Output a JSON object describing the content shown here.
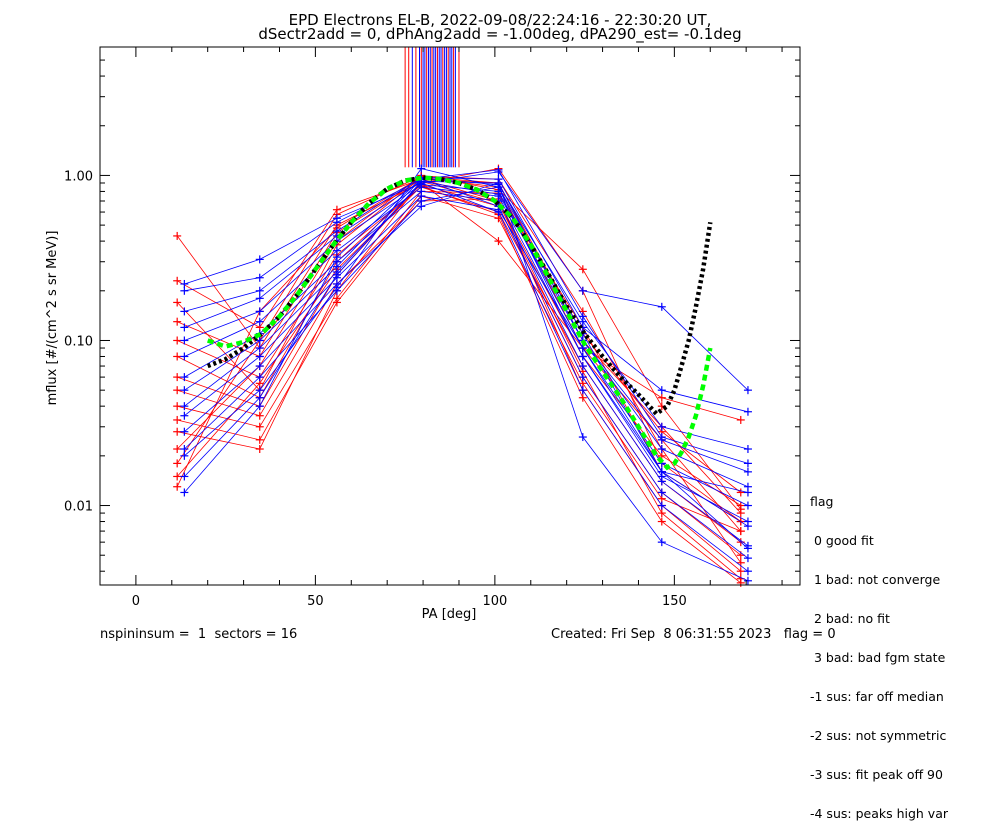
{
  "header": {
    "line1": "EPD Electrons EL-B, 2022-09-08/22:24:16 - 22:30:20 UT,",
    "line2": "dSectr2add = 0, dPhAng2add = -1.00deg, dPA290_est=  -0.1deg"
  },
  "footer": {
    "left": "nspininsum =  1  sectors = 16",
    "right": "Created: Fri Sep  8 06:31:55 2023   flag = 0"
  },
  "legend": {
    "title": "flag",
    "items": [
      " 0 good fit",
      " 1 bad: not converge",
      " 2 bad: no fit",
      " 3 bad: bad fgm state",
      "-1 sus: far off median",
      "-2 sus: not symmetric",
      "-3 sus: fit peak off 90",
      "-4 sus: peaks high var"
    ]
  },
  "chart_data": {
    "type": "line",
    "title": "EPD Electrons EL-B, 2022-09-08/22:24:16 - 22:30:20 UT,",
    "xlabel": "PA [deg]",
    "ylabel": "mflux [#/(cm^2 s sr MeV)]",
    "xlim": [
      -10,
      185
    ],
    "ylim": [
      0.0033,
      6.0
    ],
    "yscale": "log",
    "xticks": [
      0,
      50,
      100,
      150
    ],
    "yticks": [
      0.01,
      0.1,
      1.0
    ],
    "ytick_labels": [
      "0.01",
      "0.10",
      "1.00"
    ],
    "colors": {
      "red": "#ff0000",
      "blue": "#0000ff",
      "black": "#000000",
      "green": "#00ff00"
    },
    "pa_bins": [
      11.5,
      13.5,
      34.5,
      56,
      79.5,
      101,
      124.5,
      146.5,
      168.5,
      170.5
    ],
    "sector_lines_x": [
      75,
      76,
      77,
      78,
      79,
      79.5,
      80,
      80.5,
      81,
      81.5,
      82,
      82.5,
      83,
      83.5,
      84,
      84.5,
      85,
      85.5,
      86,
      86.5,
      87,
      87.5,
      88,
      88.5,
      89,
      90
    ],
    "sector_lines_color": [
      "red",
      "red",
      "blue",
      "red",
      "blue",
      "red",
      "blue",
      "blue",
      "red",
      "blue",
      "blue",
      "red",
      "blue",
      "blue",
      "red",
      "blue",
      "blue",
      "red",
      "blue",
      "blue",
      "red",
      "blue",
      "blue",
      "red",
      "blue",
      "red"
    ],
    "sector_lines_range": [
      1.12,
      6.0
    ],
    "series": [
      {
        "color": "red",
        "x": [
          11.5,
          34.5,
          56,
          79.5,
          101,
          124.5,
          146.5,
          168.5
        ],
        "values": [
          0.43,
          0.09,
          0.5,
          0.9,
          1.1,
          0.2,
          0.018,
          0.008
        ]
      },
      {
        "color": "red",
        "x": [
          11.5,
          34.5,
          56,
          79.5,
          101,
          124.5,
          146.5,
          168.5
        ],
        "values": [
          0.23,
          0.12,
          0.62,
          0.95,
          0.9,
          0.1,
          0.03,
          0.009
        ]
      },
      {
        "color": "red",
        "x": [
          11.5,
          34.5,
          56,
          79.5,
          101,
          124.5,
          146.5,
          168.5
        ],
        "values": [
          0.17,
          0.05,
          0.38,
          0.97,
          0.85,
          0.09,
          0.025,
          0.007
        ]
      },
      {
        "color": "red",
        "x": [
          11.5,
          34.5,
          56,
          79.5,
          101,
          124.5,
          146.5,
          168.5
        ],
        "values": [
          0.13,
          0.08,
          0.45,
          0.95,
          0.7,
          0.08,
          0.02,
          0.01
        ]
      },
      {
        "color": "red",
        "x": [
          11.5,
          34.5,
          56,
          79.5,
          101,
          124.5,
          146.5,
          168.5
        ],
        "values": [
          0.1,
          0.06,
          0.33,
          0.85,
          0.6,
          0.07,
          0.014,
          0.006
        ]
      },
      {
        "color": "red",
        "x": [
          11.5,
          34.5,
          56,
          79.5,
          101,
          124.5,
          146.5,
          168.5
        ],
        "values": [
          0.08,
          0.045,
          0.3,
          0.88,
          0.65,
          0.06,
          0.012,
          0.005
        ]
      },
      {
        "color": "red",
        "x": [
          11.5,
          34.5,
          56,
          79.5,
          101,
          124.5,
          146.5,
          168.5
        ],
        "values": [
          0.06,
          0.04,
          0.25,
          0.9,
          0.4,
          0.09,
          0.045,
          0.033
        ]
      },
      {
        "color": "red",
        "x": [
          11.5,
          34.5,
          56,
          79.5,
          101,
          124.5,
          146.5,
          168.5
        ],
        "values": [
          0.05,
          0.035,
          0.22,
          0.7,
          0.72,
          0.05,
          0.01,
          0.004
        ]
      },
      {
        "color": "red",
        "x": [
          11.5,
          34.5,
          56,
          79.5,
          101,
          124.5,
          146.5,
          168.5
        ],
        "values": [
          0.04,
          0.03,
          0.18,
          0.8,
          0.78,
          0.12,
          0.016,
          0.008
        ]
      },
      {
        "color": "red",
        "x": [
          11.5,
          34.5,
          56,
          79.5,
          101,
          124.5,
          146.5,
          168.5
        ],
        "values": [
          0.033,
          0.025,
          0.17,
          0.75,
          0.55,
          0.055,
          0.011,
          0.007
        ]
      },
      {
        "color": "red",
        "x": [
          11.5,
          34.5,
          56,
          79.5,
          101,
          124.5,
          146.5,
          168.5
        ],
        "values": [
          0.028,
          0.022,
          0.2,
          0.92,
          0.68,
          0.065,
          0.009,
          0.0036
        ]
      },
      {
        "color": "red",
        "x": [
          11.5,
          34.5,
          56,
          79.5,
          101,
          124.5,
          146.5,
          168.5
        ],
        "values": [
          0.022,
          0.07,
          0.4,
          1.0,
          0.82,
          0.27,
          0.04,
          0.0095
        ]
      },
      {
        "color": "red",
        "x": [
          11.5,
          34.5,
          56,
          79.5,
          101,
          124.5,
          146.5,
          168.5
        ],
        "values": [
          0.018,
          0.1,
          0.58,
          0.99,
          0.95,
          0.15,
          0.022,
          0.0045
        ]
      },
      {
        "color": "red",
        "x": [
          11.5,
          34.5,
          56,
          79.5,
          101,
          124.5,
          146.5,
          168.5
        ],
        "values": [
          0.015,
          0.055,
          0.27,
          0.86,
          0.58,
          0.045,
          0.008,
          0.0034
        ]
      },
      {
        "color": "red",
        "x": [
          11.5,
          34.5,
          56,
          79.5,
          101,
          124.5,
          146.5,
          168.5
        ],
        "values": [
          0.013,
          0.15,
          0.48,
          0.98,
          0.9,
          0.11,
          0.028,
          0.012
        ]
      },
      {
        "color": "blue",
        "x": [
          13.5,
          34.5,
          56,
          79.5,
          101,
          124.5,
          146.5,
          170.5
        ],
        "values": [
          0.22,
          0.31,
          0.55,
          0.9,
          1.05,
          0.2,
          0.16,
          0.05
        ]
      },
      {
        "color": "blue",
        "x": [
          13.5,
          34.5,
          56,
          79.5,
          101,
          124.5,
          146.5,
          170.5
        ],
        "values": [
          0.2,
          0.24,
          0.52,
          0.95,
          1.08,
          0.14,
          0.026,
          0.018
        ]
      },
      {
        "color": "blue",
        "x": [
          13.5,
          34.5,
          56,
          79.5,
          101,
          124.5,
          146.5,
          170.5
        ],
        "values": [
          0.15,
          0.2,
          0.46,
          0.97,
          0.95,
          0.12,
          0.05,
          0.037
        ]
      },
      {
        "color": "blue",
        "x": [
          13.5,
          34.5,
          56,
          79.5,
          101,
          124.5,
          146.5,
          170.5
        ],
        "values": [
          0.12,
          0.18,
          0.43,
          0.92,
          0.9,
          0.1,
          0.022,
          0.013
        ]
      },
      {
        "color": "blue",
        "x": [
          13.5,
          34.5,
          56,
          79.5,
          101,
          124.5,
          146.5,
          170.5
        ],
        "values": [
          0.1,
          0.15,
          0.4,
          0.88,
          0.8,
          0.09,
          0.018,
          0.01
        ]
      },
      {
        "color": "blue",
        "x": [
          13.5,
          34.5,
          56,
          79.5,
          101,
          124.5,
          146.5,
          170.5
        ],
        "values": [
          0.08,
          0.13,
          0.35,
          0.85,
          0.75,
          0.08,
          0.016,
          0.0075
        ]
      },
      {
        "color": "blue",
        "x": [
          13.5,
          34.5,
          56,
          79.5,
          101,
          124.5,
          146.5,
          170.5
        ],
        "values": [
          0.06,
          0.11,
          0.3,
          0.8,
          0.7,
          0.07,
          0.014,
          0.0057
        ]
      },
      {
        "color": "blue",
        "x": [
          13.5,
          34.5,
          56,
          79.5,
          101,
          124.5,
          146.5,
          170.5
        ],
        "values": [
          0.05,
          0.1,
          0.28,
          0.95,
          0.65,
          0.06,
          0.012,
          0.0048
        ]
      },
      {
        "color": "blue",
        "x": [
          13.5,
          34.5,
          56,
          79.5,
          101,
          124.5,
          146.5,
          170.5
        ],
        "values": [
          0.04,
          0.09,
          0.26,
          0.9,
          0.6,
          0.05,
          0.01,
          0.004
        ]
      },
      {
        "color": "blue",
        "x": [
          13.5,
          34.5,
          56,
          79.5,
          101,
          124.5,
          146.5,
          170.5
        ],
        "values": [
          0.035,
          0.08,
          0.24,
          0.75,
          0.62,
          0.09,
          0.016,
          0.0055
        ]
      },
      {
        "color": "blue",
        "x": [
          13.5,
          34.5,
          56,
          79.5,
          101,
          124.5,
          146.5,
          170.5
        ],
        "values": [
          0.028,
          0.07,
          0.22,
          0.65,
          0.9,
          0.026,
          0.006,
          0.0035
        ]
      },
      {
        "color": "blue",
        "x": [
          13.5,
          34.5,
          56,
          79.5,
          101,
          124.5,
          146.5,
          170.5
        ],
        "values": [
          0.022,
          0.06,
          0.2,
          0.7,
          0.85,
          0.11,
          0.016,
          0.012
        ]
      },
      {
        "color": "blue",
        "x": [
          13.5,
          34.5,
          56,
          79.5,
          101,
          124.5,
          146.5,
          170.5
        ],
        "values": [
          0.02,
          0.05,
          0.21,
          1.1,
          0.85,
          0.08,
          0.015,
          0.008
        ]
      },
      {
        "color": "blue",
        "x": [
          13.5,
          34.5,
          56,
          79.5,
          101,
          124.5,
          146.5,
          170.5
        ],
        "values": [
          0.015,
          0.045,
          0.25,
          0.92,
          0.77,
          0.1,
          0.025,
          0.016
        ]
      },
      {
        "color": "blue",
        "x": [
          13.5,
          34.5,
          56,
          79.5,
          101,
          124.5,
          146.5,
          170.5
        ],
        "values": [
          0.012,
          0.04,
          0.32,
          0.96,
          0.88,
          0.13,
          0.03,
          0.022
        ]
      }
    ],
    "fits": [
      {
        "color": "black",
        "style": "dotted",
        "x": [
          20,
          25,
          30,
          35,
          40,
          45,
          50,
          55,
          60,
          65,
          70,
          75,
          80,
          85,
          90,
          95,
          100,
          105,
          110,
          115,
          120,
          125,
          130,
          135,
          140,
          145,
          148,
          150,
          152,
          154,
          156,
          158,
          160
        ],
        "values": [
          0.07,
          0.077,
          0.09,
          0.11,
          0.14,
          0.19,
          0.27,
          0.38,
          0.52,
          0.68,
          0.83,
          0.93,
          0.97,
          0.95,
          0.9,
          0.82,
          0.7,
          0.55,
          0.38,
          0.25,
          0.16,
          0.11,
          0.08,
          0.06,
          0.047,
          0.036,
          0.04,
          0.05,
          0.07,
          0.1,
          0.16,
          0.27,
          0.52
        ]
      },
      {
        "color": "green",
        "style": "dashed",
        "x": [
          20,
          25,
          30,
          35,
          40,
          45,
          50,
          55,
          60,
          65,
          70,
          75,
          80,
          85,
          90,
          95,
          100,
          105,
          110,
          115,
          120,
          125,
          130,
          135,
          140,
          145,
          148,
          150,
          152,
          154,
          156,
          158,
          160
        ],
        "values": [
          0.1,
          0.092,
          0.098,
          0.11,
          0.14,
          0.19,
          0.27,
          0.38,
          0.52,
          0.68,
          0.83,
          0.93,
          0.97,
          0.95,
          0.9,
          0.82,
          0.7,
          0.55,
          0.38,
          0.24,
          0.15,
          0.095,
          0.065,
          0.045,
          0.03,
          0.02,
          0.017,
          0.018,
          0.021,
          0.026,
          0.035,
          0.053,
          0.09
        ]
      }
    ]
  }
}
